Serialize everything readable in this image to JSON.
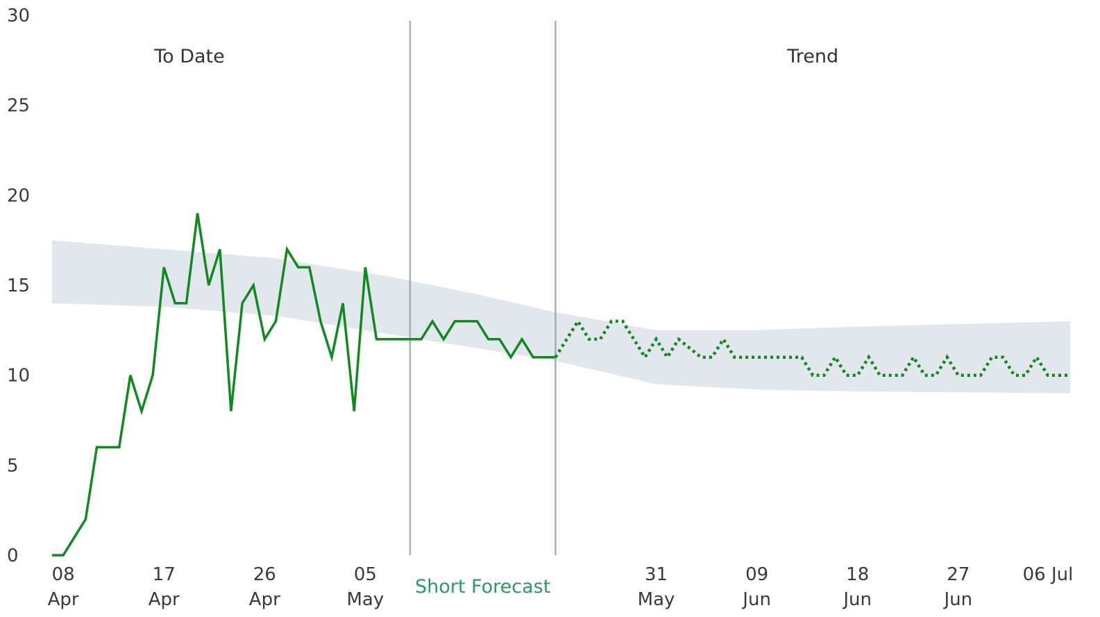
{
  "chart_data": {
    "type": "line",
    "title": "",
    "xlabel": "",
    "ylabel": "",
    "ylim": [
      0,
      30
    ],
    "y_ticks": [
      "0",
      "5",
      "10",
      "15",
      "20",
      "25",
      "30"
    ],
    "x_ticks": [
      {
        "date": "2020-04-08",
        "line1": "08",
        "line2": "Apr"
      },
      {
        "date": "2020-04-17",
        "line1": "17",
        "line2": "Apr"
      },
      {
        "date": "2020-04-26",
        "line1": "26",
        "line2": "Apr"
      },
      {
        "date": "2020-05-05",
        "line1": "05",
        "line2": "May"
      },
      {
        "date": "2020-05-31",
        "line1": "31",
        "line2": "May"
      },
      {
        "date": "2020-06-09",
        "line1": "09",
        "line2": "Jun"
      },
      {
        "date": "2020-06-18",
        "line1": "18",
        "line2": "Jun"
      },
      {
        "date": "2020-06-27",
        "line1": "27",
        "line2": "Jun"
      },
      {
        "date": "2020-07-06",
        "line1": "06 Jul",
        "line2": ""
      }
    ],
    "x_range": [
      "2020-04-07",
      "2020-07-07"
    ],
    "grid": false,
    "regions": [
      {
        "label": "To Date",
        "start": "2020-04-07",
        "end": "2020-05-09"
      },
      {
        "label": "Short Forecast",
        "start": "2020-05-09",
        "end": "2020-05-22"
      },
      {
        "label": "Trend",
        "start": "2020-05-22",
        "end": "2020-07-07"
      }
    ],
    "dividers": [
      "2020-05-09",
      "2020-05-22"
    ],
    "colors": {
      "line": "#0f8a1e",
      "band": "#dde2ea",
      "divider": "#a9acb2",
      "forecast_label": "#2a9a62"
    },
    "series": [
      {
        "style": "solid",
        "points": [
          [
            "2020-04-07",
            0
          ],
          [
            "2020-04-08",
            0
          ],
          [
            "2020-04-09",
            1
          ],
          [
            "2020-04-10",
            2
          ],
          [
            "2020-04-11",
            6
          ],
          [
            "2020-04-12",
            6
          ],
          [
            "2020-04-13",
            6
          ],
          [
            "2020-04-14",
            10
          ],
          [
            "2020-04-15",
            8
          ],
          [
            "2020-04-16",
            10
          ],
          [
            "2020-04-17",
            16
          ],
          [
            "2020-04-18",
            14
          ],
          [
            "2020-04-19",
            14
          ],
          [
            "2020-04-20",
            19
          ],
          [
            "2020-04-21",
            15
          ],
          [
            "2020-04-22",
            17
          ],
          [
            "2020-04-23",
            8
          ],
          [
            "2020-04-24",
            14
          ],
          [
            "2020-04-25",
            15
          ],
          [
            "2020-04-26",
            12
          ],
          [
            "2020-04-27",
            13
          ],
          [
            "2020-04-28",
            17
          ],
          [
            "2020-04-29",
            16
          ],
          [
            "2020-04-30",
            16
          ],
          [
            "2020-05-01",
            13
          ],
          [
            "2020-05-02",
            11
          ],
          [
            "2020-05-03",
            14
          ],
          [
            "2020-05-04",
            8
          ],
          [
            "2020-05-05",
            16
          ],
          [
            "2020-05-06",
            12
          ],
          [
            "2020-05-07",
            12
          ],
          [
            "2020-05-08",
            12
          ],
          [
            "2020-05-09",
            12
          ],
          [
            "2020-05-10",
            12
          ],
          [
            "2020-05-11",
            13
          ],
          [
            "2020-05-12",
            12
          ],
          [
            "2020-05-13",
            13
          ],
          [
            "2020-05-14",
            13
          ],
          [
            "2020-05-15",
            13
          ],
          [
            "2020-05-16",
            12
          ],
          [
            "2020-05-17",
            12
          ],
          [
            "2020-05-18",
            11
          ],
          [
            "2020-05-19",
            12
          ],
          [
            "2020-05-20",
            11
          ],
          [
            "2020-05-21",
            11
          ],
          [
            "2020-05-22",
            11
          ]
        ]
      },
      {
        "style": "dotted",
        "points": [
          [
            "2020-05-22",
            11
          ],
          [
            "2020-05-24",
            13
          ],
          [
            "2020-05-25",
            12
          ],
          [
            "2020-05-26",
            12
          ],
          [
            "2020-05-27",
            13
          ],
          [
            "2020-05-28",
            13
          ],
          [
            "2020-05-30",
            11
          ],
          [
            "2020-05-31",
            12
          ],
          [
            "2020-06-01",
            11
          ],
          [
            "2020-06-02",
            12
          ],
          [
            "2020-06-04",
            11
          ],
          [
            "2020-06-05",
            11
          ],
          [
            "2020-06-06",
            12
          ],
          [
            "2020-06-07",
            11
          ],
          [
            "2020-06-08",
            11
          ],
          [
            "2020-06-13",
            11
          ],
          [
            "2020-06-14",
            10
          ],
          [
            "2020-06-15",
            10
          ],
          [
            "2020-06-16",
            11
          ],
          [
            "2020-06-17",
            10
          ],
          [
            "2020-06-18",
            10
          ],
          [
            "2020-06-19",
            11
          ],
          [
            "2020-06-20",
            10
          ],
          [
            "2020-06-22",
            10
          ],
          [
            "2020-06-23",
            11
          ],
          [
            "2020-06-24",
            10
          ],
          [
            "2020-06-25",
            10
          ],
          [
            "2020-06-26",
            11
          ],
          [
            "2020-06-27",
            10
          ],
          [
            "2020-06-29",
            10
          ],
          [
            "2020-06-30",
            11
          ],
          [
            "2020-07-01",
            11
          ],
          [
            "2020-07-02",
            10
          ],
          [
            "2020-07-03",
            10
          ],
          [
            "2020-07-04",
            11
          ],
          [
            "2020-07-05",
            10
          ],
          [
            "2020-07-07",
            10
          ]
        ]
      }
    ],
    "band": {
      "upper": [
        [
          "2020-04-07",
          17.5
        ],
        [
          "2020-04-17",
          17
        ],
        [
          "2020-04-27",
          16.5
        ],
        [
          "2020-05-07",
          15.5
        ],
        [
          "2020-05-15",
          14.5
        ],
        [
          "2020-05-22",
          13.5
        ],
        [
          "2020-05-31",
          12.5
        ],
        [
          "2020-06-09",
          12.5
        ],
        [
          "2020-06-18",
          12.7
        ],
        [
          "2020-07-07",
          13
        ]
      ],
      "lower": [
        [
          "2020-04-07",
          14
        ],
        [
          "2020-04-17",
          13.8
        ],
        [
          "2020-04-27",
          13.3
        ],
        [
          "2020-05-07",
          12.3
        ],
        [
          "2020-05-15",
          11.5
        ],
        [
          "2020-05-22",
          10.8
        ],
        [
          "2020-05-31",
          9.5
        ],
        [
          "2020-06-09",
          9.2
        ],
        [
          "2020-06-18",
          9.1
        ],
        [
          "2020-07-07",
          9
        ]
      ]
    }
  }
}
